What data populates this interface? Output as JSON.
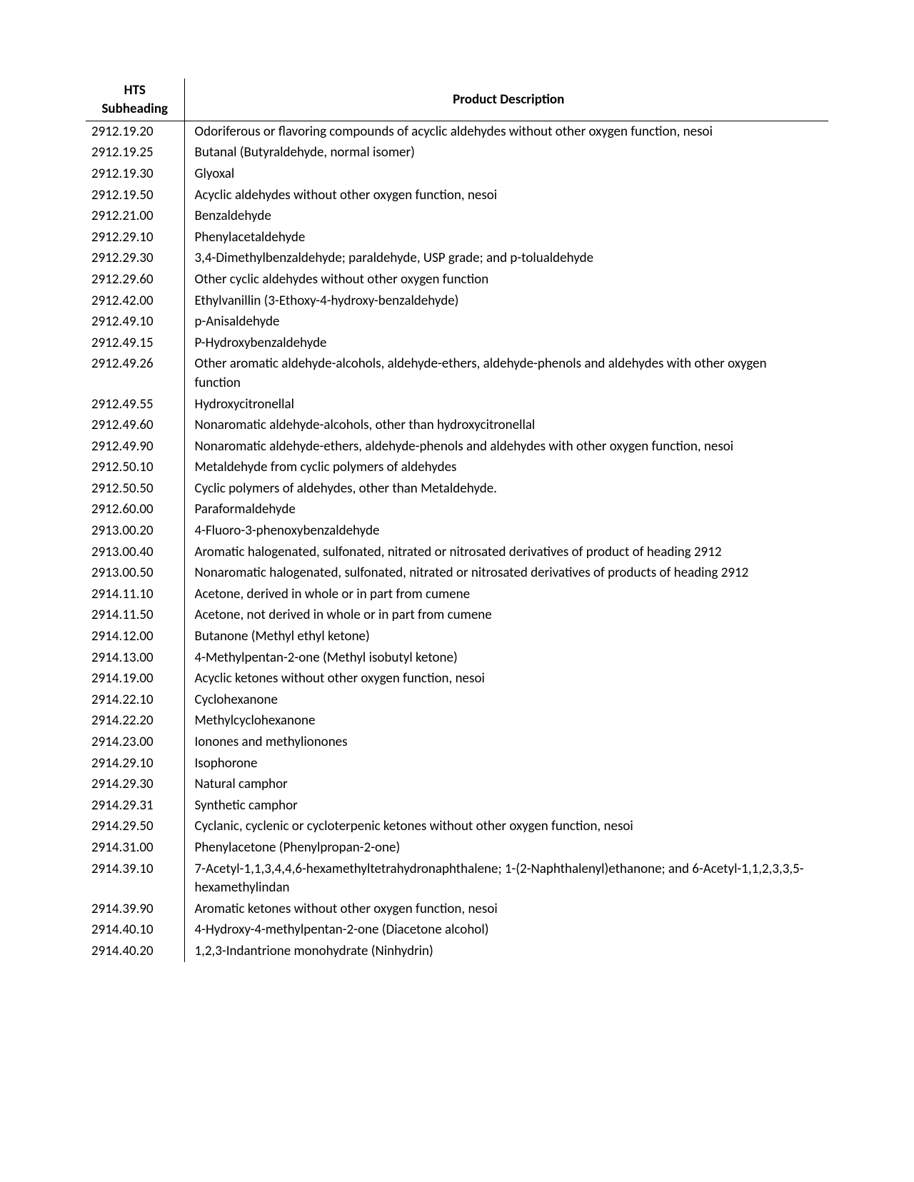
{
  "table": {
    "header_hts_line1": "HTS",
    "header_hts_line2": "Subheading",
    "header_desc": "Product Description",
    "rows": [
      {
        "hts": "2912.19.20",
        "desc": "Odoriferous or flavoring compounds of acyclic aldehydes without other oxygen function, nesoi"
      },
      {
        "hts": "2912.19.25",
        "desc": "Butanal (Butyraldehyde, normal isomer)"
      },
      {
        "hts": "2912.19.30",
        "desc": "Glyoxal"
      },
      {
        "hts": "2912.19.50",
        "desc": "Acyclic aldehydes without other oxygen function, nesoi"
      },
      {
        "hts": "2912.21.00",
        "desc": "Benzaldehyde"
      },
      {
        "hts": "2912.29.10",
        "desc": "Phenylacetaldehyde"
      },
      {
        "hts": "2912.29.30",
        "desc": "3,4-Dimethylbenzaldehyde; paraldehyde, USP grade; and p-tolualdehyde"
      },
      {
        "hts": "2912.29.60",
        "desc": "Other cyclic aldehydes without other oxygen function"
      },
      {
        "hts": "2912.42.00",
        "desc": "Ethylvanillin (3-Ethoxy-4-hydroxy-benzaldehyde)"
      },
      {
        "hts": "2912.49.10",
        "desc": "p-Anisaldehyde"
      },
      {
        "hts": "2912.49.15",
        "desc": "P-Hydroxybenzaldehyde"
      },
      {
        "hts": "2912.49.26",
        "desc": "Other aromatic aldehyde-alcohols, aldehyde-ethers, aldehyde-phenols and aldehydes with other oxygen function"
      },
      {
        "hts": "2912.49.55",
        "desc": "Hydroxycitronellal"
      },
      {
        "hts": "2912.49.60",
        "desc": "Nonaromatic aldehyde-alcohols, other than hydroxycitronellal"
      },
      {
        "hts": "2912.49.90",
        "desc": "Nonaromatic aldehyde-ethers, aldehyde-phenols and aldehydes with other oxygen function, nesoi"
      },
      {
        "hts": "2912.50.10",
        "desc": "Metaldehyde from cyclic polymers of aldehydes"
      },
      {
        "hts": "2912.50.50",
        "desc": "Cyclic polymers of aldehydes, other than Metaldehyde."
      },
      {
        "hts": "2912.60.00",
        "desc": "Paraformaldehyde"
      },
      {
        "hts": "2913.00.20",
        "desc": "4-Fluoro-3-phenoxybenzaldehyde"
      },
      {
        "hts": "2913.00.40",
        "desc": "Aromatic halogenated, sulfonated, nitrated or nitrosated derivatives of product of heading 2912"
      },
      {
        "hts": "2913.00.50",
        "desc": "Nonaromatic halogenated, sulfonated, nitrated or nitrosated derivatives of products of heading 2912"
      },
      {
        "hts": "2914.11.10",
        "desc": "Acetone, derived in whole or in part from cumene"
      },
      {
        "hts": "2914.11.50",
        "desc": "Acetone, not derived in whole or in part from cumene"
      },
      {
        "hts": "2914.12.00",
        "desc": "Butanone (Methyl ethyl ketone)"
      },
      {
        "hts": "2914.13.00",
        "desc": "4-Methylpentan-2-one (Methyl isobutyl ketone)"
      },
      {
        "hts": "2914.19.00",
        "desc": "Acyclic ketones without other oxygen function, nesoi"
      },
      {
        "hts": "2914.22.10",
        "desc": "Cyclohexanone"
      },
      {
        "hts": "2914.22.20",
        "desc": "Methylcyclohexanone"
      },
      {
        "hts": "2914.23.00",
        "desc": "Ionones and methylionones"
      },
      {
        "hts": "2914.29.10",
        "desc": "Isophorone"
      },
      {
        "hts": "2914.29.30",
        "desc": "Natural camphor"
      },
      {
        "hts": "2914.29.31",
        "desc": "Synthetic camphor"
      },
      {
        "hts": "2914.29.50",
        "desc": "Cyclanic, cyclenic or cycloterpenic ketones without other oxygen function, nesoi"
      },
      {
        "hts": "2914.31.00",
        "desc": "Phenylacetone (Phenylpropan-2-one)"
      },
      {
        "hts": "2914.39.10",
        "desc": "7-Acetyl-1,1,3,4,4,6-hexamethyltetrahydronaphthalene; 1-(2-Naphthalenyl)ethanone; and 6-Acetyl-1,1,2,3,3,5-hexamethylindan"
      },
      {
        "hts": "2914.39.90",
        "desc": "Aromatic ketones without other oxygen function, nesoi"
      },
      {
        "hts": "2914.40.10",
        "desc": "4-Hydroxy-4-methylpentan-2-one (Diacetone alcohol)"
      },
      {
        "hts": "2914.40.20",
        "desc": "1,2,3-Indantrione monohydrate (Ninhydrin)"
      }
    ]
  }
}
